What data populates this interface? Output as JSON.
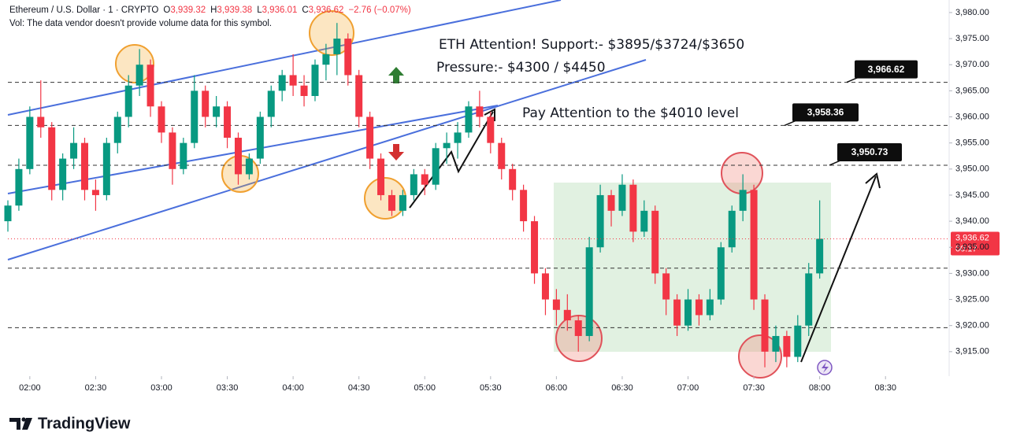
{
  "chart_data": {
    "type": "candlestick",
    "symbol": "Ethereum / U.S. Dollar · 1 · CRYPTO",
    "ohlc_labels": [
      {
        "key": "O",
        "value": "3,939.32"
      },
      {
        "key": "H",
        "value": "3,939.38"
      },
      {
        "key": "L",
        "value": "3,936.01"
      },
      {
        "key": "C",
        "value": "3,936.62"
      }
    ],
    "change": "−2.76 (−0.07%)",
    "volume_note": "Vol: The data vendor doesn't provide volume data for this symbol.",
    "annotations": [
      "ETH Attention! Support:- $3895/$3724/$3650",
      "Pressure:- $4300 / $4450",
      "Pay Attention to the $4010 level"
    ],
    "brand": "TradingView",
    "up_color": "#089981",
    "down_color": "#f23645",
    "xlim": [
      "01:50",
      "08:59"
    ],
    "ylim": [
      3910.3,
      3982.4
    ],
    "xticks": [
      "02:00",
      "02:30",
      "03:00",
      "03:30",
      "04:00",
      "04:30",
      "05:00",
      "05:30",
      "06:00",
      "06:30",
      "07:00",
      "07:30",
      "08:00",
      "08:30"
    ],
    "yticks": [
      {
        "value": 3915,
        "label": "3,915.00"
      },
      {
        "value": 3920,
        "label": "3,920.00"
      },
      {
        "value": 3925,
        "label": "3,925.00"
      },
      {
        "value": 3930,
        "label": "3,930.00"
      },
      {
        "value": 3935,
        "label": "3,935.00"
      },
      {
        "value": 3940,
        "label": "3,940.00"
      },
      {
        "value": 3945,
        "label": "3,945.00"
      },
      {
        "value": 3950,
        "label": "3,950.00"
      },
      {
        "value": 3955,
        "label": "3,955.00"
      },
      {
        "value": 3960,
        "label": "3,960.00"
      },
      {
        "value": 3965,
        "label": "3,965.00"
      },
      {
        "value": 3970,
        "label": "3,970.00"
      },
      {
        "value": 3975,
        "label": "3,975.00"
      },
      {
        "value": 3980,
        "label": "3,980.00"
      }
    ],
    "levels": [
      {
        "value": 3966.62,
        "label": "3,966.62"
      },
      {
        "value": 3958.36,
        "label": "3,958.36"
      },
      {
        "value": 3950.73,
        "label": "3,950.73"
      },
      3931,
      3919.6
    ],
    "last_price": {
      "value": 3936.62,
      "label": "3,936.62",
      "countdown": "00:17"
    },
    "x": [
      "01:50",
      "01:55",
      "02:00",
      "02:05",
      "02:10",
      "02:15",
      "02:20",
      "02:25",
      "02:30",
      "02:35",
      "02:40",
      "02:45",
      "02:50",
      "02:55",
      "03:00",
      "03:05",
      "03:10",
      "03:15",
      "03:20",
      "03:25",
      "03:30",
      "03:35",
      "03:40",
      "03:45",
      "03:50",
      "03:55",
      "04:00",
      "04:05",
      "04:10",
      "04:15",
      "04:20",
      "04:25",
      "04:30",
      "04:35",
      "04:40",
      "04:45",
      "04:50",
      "04:55",
      "05:00",
      "05:05",
      "05:10",
      "05:15",
      "05:20",
      "05:25",
      "05:30",
      "05:35",
      "05:40",
      "05:45",
      "05:50",
      "05:55",
      "06:00",
      "06:05",
      "06:10",
      "06:15",
      "06:20",
      "06:25",
      "06:30",
      "06:35",
      "06:40",
      "06:45",
      "06:50",
      "06:55",
      "07:00",
      "07:05",
      "07:10",
      "07:15",
      "07:20",
      "07:25",
      "07:30",
      "07:35",
      "07:40",
      "07:45",
      "07:50",
      "07:55",
      "08:00"
    ],
    "open": [
      3940,
      3943,
      3950,
      3960,
      3958,
      3946,
      3952,
      3955,
      3946,
      3945,
      3955,
      3960,
      3966,
      3970,
      3962,
      3957,
      3950,
      3955,
      3965,
      3960,
      3962,
      3956,
      3949,
      3952,
      3960,
      3965,
      3968,
      3966,
      3964,
      3970,
      3972,
      3975,
      3968,
      3960,
      3952,
      3945,
      3942,
      3945,
      3949,
      3947,
      3954,
      3955,
      3957,
      3962,
      3960,
      3955,
      3950,
      3946,
      3940,
      3930,
      3925,
      3923,
      3921,
      3918,
      3935,
      3945,
      3942,
      3947,
      3938,
      3942,
      3930,
      3925,
      3920,
      3925,
      3922,
      3925,
      3935,
      3942,
      3946,
      3925,
      3915,
      3918,
      3914,
      3920,
      3930
    ],
    "high": [
      3944,
      3952,
      3962,
      3967,
      3959,
      3953,
      3958,
      3956,
      3948,
      3956,
      3961,
      3968,
      3973,
      3971,
      3963,
      3958,
      3956,
      3968,
      3966,
      3964,
      3963,
      3957,
      3953,
      3961,
      3966,
      3969,
      3972,
      3968,
      3971,
      3974,
      3978,
      3976,
      3969,
      3961,
      3953,
      3946,
      3946,
      3950,
      3950,
      3955,
      3957,
      3959,
      3963,
      3965,
      3961,
      3956,
      3951,
      3947,
      3941,
      3931,
      3927,
      3926,
      3922,
      3937,
      3947,
      3946,
      3949,
      3948,
      3944,
      3943,
      3931,
      3926,
      3927,
      3926,
      3927,
      3936,
      3943,
      3949,
      3947,
      3926,
      3920,
      3919,
      3922,
      3932,
      3944
    ],
    "low": [
      3938,
      3942,
      3949,
      3956,
      3944,
      3944,
      3950,
      3944,
      3942,
      3944,
      3953,
      3958,
      3964,
      3960,
      3955,
      3947,
      3949,
      3954,
      3958,
      3958,
      3954,
      3947,
      3948,
      3951,
      3958,
      3963,
      3964,
      3962,
      3963,
      3967,
      3968,
      3966,
      3958,
      3950,
      3944,
      3941,
      3941,
      3944,
      3945,
      3946,
      3951,
      3952,
      3956,
      3958,
      3953,
      3948,
      3944,
      3938,
      3928,
      3922,
      3920,
      3919,
      3915,
      3917,
      3934,
      3939,
      3941,
      3936,
      3937,
      3928,
      3922,
      3918,
      3919,
      3920,
      3921,
      3924,
      3934,
      3940,
      3923,
      3912,
      3913,
      3912,
      3913,
      3918,
      3929
    ],
    "close": [
      3943,
      3950,
      3960,
      3958,
      3946,
      3952,
      3955,
      3946,
      3945,
      3955,
      3960,
      3966,
      3970,
      3962,
      3957,
      3950,
      3955,
      3965,
      3960,
      3962,
      3956,
      3949,
      3952,
      3960,
      3965,
      3968,
      3966,
      3964,
      3970,
      3972,
      3975,
      3968,
      3960,
      3952,
      3945,
      3942,
      3945,
      3949,
      3947,
      3954,
      3955,
      3957,
      3962,
      3960,
      3955,
      3950,
      3946,
      3940,
      3930,
      3925,
      3923,
      3921,
      3918,
      3935,
      3945,
      3942,
      3947,
      3938,
      3942,
      3930,
      3925,
      3920,
      3925,
      3922,
      3925,
      3935,
      3942,
      3946,
      3925,
      3915,
      3918,
      3914,
      3920,
      3930,
      3936.62
    ]
  }
}
